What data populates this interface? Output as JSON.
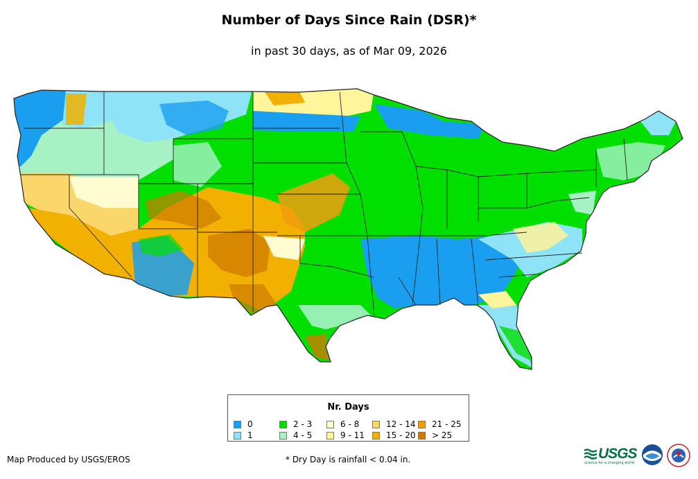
{
  "header": {
    "title": "Number of Days Since Rain (DSR)*",
    "subtitle": "in past 30 days, as of Mar 09, 2026"
  },
  "map": {
    "region": "Contiguous United States",
    "zones": [
      {
        "area": "Pacific Northwest coast",
        "category": "0"
      },
      {
        "area": "Northern Rockies",
        "category": "1"
      },
      {
        "area": "Northern Plains",
        "category": "9 - 11"
      },
      {
        "area": "Great Lakes / Midwest",
        "category": "2 - 3"
      },
      {
        "area": "Southeast",
        "category": "0"
      },
      {
        "area": "Southwest",
        "category": "15 - 20"
      },
      {
        "area": "Southern Plains",
        "category": "21 - 25"
      },
      {
        "area": "Florida",
        "category": "1"
      },
      {
        "area": "New England",
        "category": "2 - 3"
      }
    ]
  },
  "legend": {
    "title": "Nr. Days",
    "items": [
      {
        "label": "0",
        "color": "#1a9ff0"
      },
      {
        "label": "1",
        "color": "#8fe3f7"
      },
      {
        "label": "2 - 3",
        "color": "#00df00"
      },
      {
        "label": "4 - 5",
        "color": "#a6f2c4"
      },
      {
        "label": "6 - 8",
        "color": "#fffccf"
      },
      {
        "label": "9 - 11",
        "color": "#fff59a"
      },
      {
        "label": "12 - 14",
        "color": "#fbd66a"
      },
      {
        "label": "15 - 20",
        "color": "#f2b000"
      },
      {
        "label": "21 - 25",
        "color": "#f19e0d"
      },
      {
        "label": "> 25",
        "color": "#cd7a00"
      }
    ]
  },
  "footer": {
    "credit": "Map Produced by USGS/EROS",
    "note": "* Dry Day is rainfall < 0.04 in.",
    "usgs_logo": "USGS",
    "usgs_tagline": "science for a changing world"
  }
}
